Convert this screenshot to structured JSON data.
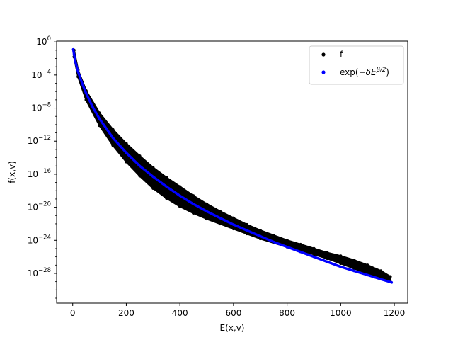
{
  "chart_data": {
    "type": "scatter",
    "xlabel": "E(x,v)",
    "ylabel": "f(x,v)",
    "xlim": [
      -60,
      1250
    ],
    "ylim_log10": [
      -31.6,
      0.1
    ],
    "yscale": "log",
    "x_ticks": [
      {
        "value": 0,
        "label": "0"
      },
      {
        "value": 200,
        "label": "200"
      },
      {
        "value": 400,
        "label": "400"
      },
      {
        "value": 600,
        "label": "600"
      },
      {
        "value": 800,
        "label": "800"
      },
      {
        "value": 1000,
        "label": "1000"
      },
      {
        "value": 1200,
        "label": "1200"
      }
    ],
    "y_ticks": [
      {
        "exp": 0,
        "label": "10",
        "sup": "0"
      },
      {
        "exp": -4,
        "label": "10",
        "sup": "−4"
      },
      {
        "exp": -8,
        "label": "10",
        "sup": "−8"
      },
      {
        "exp": -12,
        "label": "10",
        "sup": "−12"
      },
      {
        "exp": -16,
        "label": "10",
        "sup": "−16"
      },
      {
        "exp": -20,
        "label": "10",
        "sup": "−20"
      },
      {
        "exp": -24,
        "label": "10",
        "sup": "−24"
      },
      {
        "exp": -28,
        "label": "10",
        "sup": "−28"
      }
    ],
    "grid": false,
    "legend_position": "top-right",
    "series": [
      {
        "name": "f",
        "color": "#000000",
        "band": [
          {
            "x": 5,
            "lo": -1.8,
            "hi": -1.0
          },
          {
            "x": 20,
            "lo": -4.2,
            "hi": -3.4
          },
          {
            "x": 50,
            "lo": -7.0,
            "hi": -5.9
          },
          {
            "x": 100,
            "lo": -10.1,
            "hi": -8.6
          },
          {
            "x": 150,
            "lo": -12.5,
            "hi": -10.6
          },
          {
            "x": 200,
            "lo": -14.5,
            "hi": -12.3
          },
          {
            "x": 250,
            "lo": -16.2,
            "hi": -13.8
          },
          {
            "x": 300,
            "lo": -17.7,
            "hi": -15.2
          },
          {
            "x": 350,
            "lo": -18.9,
            "hi": -16.4
          },
          {
            "x": 400,
            "lo": -19.9,
            "hi": -17.5
          },
          {
            "x": 450,
            "lo": -20.7,
            "hi": -18.6
          },
          {
            "x": 500,
            "lo": -21.4,
            "hi": -19.6
          },
          {
            "x": 550,
            "lo": -22.0,
            "hi": -20.5
          },
          {
            "x": 600,
            "lo": -22.6,
            "hi": -21.3
          },
          {
            "x": 650,
            "lo": -23.2,
            "hi": -22.1
          },
          {
            "x": 700,
            "lo": -23.8,
            "hi": -22.8
          },
          {
            "x": 750,
            "lo": -24.3,
            "hi": -23.4
          },
          {
            "x": 800,
            "lo": -24.8,
            "hi": -24.0
          },
          {
            "x": 850,
            "lo": -25.2,
            "hi": -24.5
          },
          {
            "x": 900,
            "lo": -25.7,
            "hi": -25.0
          },
          {
            "x": 950,
            "lo": -26.2,
            "hi": -25.5
          },
          {
            "x": 1000,
            "lo": -26.8,
            "hi": -25.9
          },
          {
            "x": 1050,
            "lo": -27.4,
            "hi": -26.4
          },
          {
            "x": 1100,
            "lo": -28.0,
            "hi": -27.0
          },
          {
            "x": 1150,
            "lo": -28.6,
            "hi": -27.7
          },
          {
            "x": 1185,
            "lo": -29.0,
            "hi": -28.4
          }
        ]
      },
      {
        "name": "exp(−δE^{β/2})",
        "legend_base": "exp(",
        "legend_delta": "−δ",
        "legend_E": "E",
        "legend_sup": "β/2",
        "legend_close": ")",
        "color": "#0000ff",
        "points": [
          {
            "x": 2,
            "y": -0.9
          },
          {
            "x": 5,
            "y": -1.5
          },
          {
            "x": 10,
            "y": -2.4
          },
          {
            "x": 20,
            "y": -3.6
          },
          {
            "x": 35,
            "y": -5.0
          },
          {
            "x": 50,
            "y": -6.2
          },
          {
            "x": 75,
            "y": -7.9
          },
          {
            "x": 100,
            "y": -9.3
          },
          {
            "x": 150,
            "y": -11.6
          },
          {
            "x": 200,
            "y": -13.4
          },
          {
            "x": 250,
            "y": -15.0
          },
          {
            "x": 300,
            "y": -16.3
          },
          {
            "x": 350,
            "y": -17.5
          },
          {
            "x": 400,
            "y": -18.6
          },
          {
            "x": 450,
            "y": -19.6
          },
          {
            "x": 500,
            "y": -20.5
          },
          {
            "x": 550,
            "y": -21.3
          },
          {
            "x": 600,
            "y": -22.1
          },
          {
            "x": 650,
            "y": -22.8
          },
          {
            "x": 700,
            "y": -23.5
          },
          {
            "x": 750,
            "y": -24.2
          },
          {
            "x": 800,
            "y": -24.8
          },
          {
            "x": 850,
            "y": -25.4
          },
          {
            "x": 900,
            "y": -26.0
          },
          {
            "x": 950,
            "y": -26.6
          },
          {
            "x": 1000,
            "y": -27.2
          },
          {
            "x": 1050,
            "y": -27.7
          },
          {
            "x": 1100,
            "y": -28.2
          },
          {
            "x": 1150,
            "y": -28.7
          },
          {
            "x": 1190,
            "y": -29.1
          }
        ]
      }
    ]
  }
}
